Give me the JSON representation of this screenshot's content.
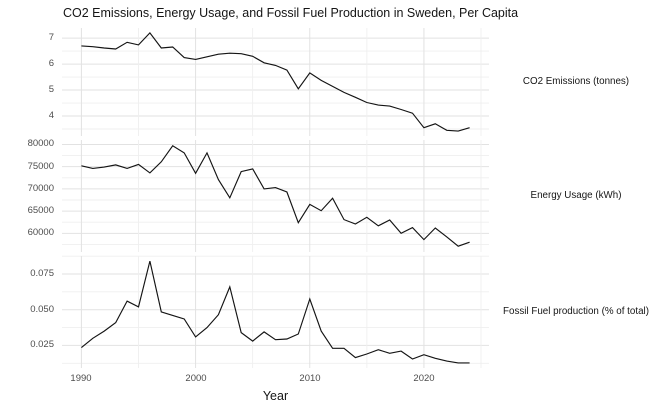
{
  "title": "CO2 Emissions, Energy Usage, and Fossil Fuel Production in Sweden, Per Capita",
  "x_axis": {
    "label": "Year",
    "ticks": [
      1990,
      2000,
      2010,
      2020
    ],
    "minor_ticks": [
      1995,
      2005,
      2015,
      2025
    ],
    "domain": [
      1988.3,
      2025.7
    ]
  },
  "colors": {
    "background": "#ffffff",
    "line": "#141414",
    "grid_major": "#e2e2e2",
    "grid_minor": "#efefef",
    "axis_text": "#4d4d4d",
    "title_text": "#151515"
  },
  "chart_data": [
    {
      "type": "line",
      "strip_label": "CO2 Emissions (tonnes)",
      "x": [
        1990,
        1991,
        1992,
        1993,
        1994,
        1995,
        1996,
        1997,
        1998,
        1999,
        2000,
        2001,
        2002,
        2003,
        2004,
        2005,
        2006,
        2007,
        2008,
        2009,
        2010,
        2011,
        2012,
        2013,
        2014,
        2015,
        2016,
        2017,
        2018,
        2019,
        2020,
        2021,
        2022,
        2023,
        2024
      ],
      "values": [
        6.7,
        6.67,
        6.62,
        6.58,
        6.84,
        6.74,
        7.2,
        6.62,
        6.66,
        6.25,
        6.18,
        6.28,
        6.38,
        6.42,
        6.4,
        6.3,
        6.05,
        5.95,
        5.77,
        5.05,
        5.66,
        5.37,
        5.14,
        4.91,
        4.72,
        4.52,
        4.42,
        4.38,
        4.25,
        4.11,
        3.55,
        3.7,
        3.45,
        3.42,
        3.55
      ],
      "y_ticks": [
        4,
        5,
        6,
        7
      ],
      "y_tick_labels": [
        "4",
        "5",
        "6",
        "7"
      ],
      "y_minor": [
        3.5,
        4.5,
        5.5,
        6.5
      ],
      "ylim": [
        3.23,
        7.39
      ]
    },
    {
      "type": "line",
      "strip_label": "Energy Usage (kWh)",
      "x": [
        1990,
        1991,
        1992,
        1993,
        1994,
        1995,
        1996,
        1997,
        1998,
        1999,
        2000,
        2001,
        2002,
        2003,
        2004,
        2005,
        2006,
        2007,
        2008,
        2009,
        2010,
        2011,
        2012,
        2013,
        2014,
        2015,
        2016,
        2017,
        2018,
        2019,
        2020,
        2021,
        2022,
        2023,
        2024
      ],
      "values": [
        75200,
        74600,
        74900,
        75400,
        74600,
        75500,
        73600,
        76100,
        79700,
        78100,
        73500,
        78100,
        72100,
        68000,
        73900,
        74500,
        70000,
        70300,
        69300,
        62400,
        66500,
        65100,
        67900,
        63100,
        62100,
        63600,
        61700,
        63000,
        60000,
        61300,
        58600,
        61200,
        59200,
        57100,
        58000
      ],
      "y_ticks": [
        60000,
        65000,
        70000,
        75000,
        80000
      ],
      "y_tick_labels": [
        "60000",
        "65000",
        "70000",
        "75000",
        "80000"
      ],
      "y_minor": [
        57500,
        62500,
        67500,
        72500,
        77500
      ],
      "ylim": [
        55800,
        81000
      ]
    },
    {
      "type": "line",
      "strip_label": "Fossil Fuel production (% of total)",
      "x": [
        1990,
        1991,
        1992,
        1993,
        1994,
        1995,
        1996,
        1997,
        1998,
        1999,
        2000,
        2001,
        2002,
        2003,
        2004,
        2005,
        2006,
        2007,
        2008,
        2009,
        2010,
        2011,
        2012,
        2013,
        2014,
        2015,
        2016,
        2017,
        2018,
        2019,
        2020,
        2021,
        2022,
        2023,
        2024
      ],
      "values": [
        0.0235,
        0.03,
        0.035,
        0.041,
        0.056,
        0.052,
        0.084,
        0.0485,
        0.046,
        0.0435,
        0.031,
        0.0375,
        0.0465,
        0.066,
        0.034,
        0.028,
        0.0345,
        0.029,
        0.0295,
        0.033,
        0.0575,
        0.035,
        0.023,
        0.023,
        0.0165,
        0.019,
        0.022,
        0.0195,
        0.021,
        0.0155,
        0.0185,
        0.016,
        0.014,
        0.0128,
        0.0128
      ],
      "y_ticks": [
        0.025,
        0.05,
        0.075
      ],
      "y_tick_labels": [
        "0.025",
        "0.050",
        "0.075"
      ],
      "y_minor": [
        0.0125,
        0.0375,
        0.0625,
        0.0875
      ],
      "ylim": [
        0.0092,
        0.0876
      ]
    }
  ]
}
